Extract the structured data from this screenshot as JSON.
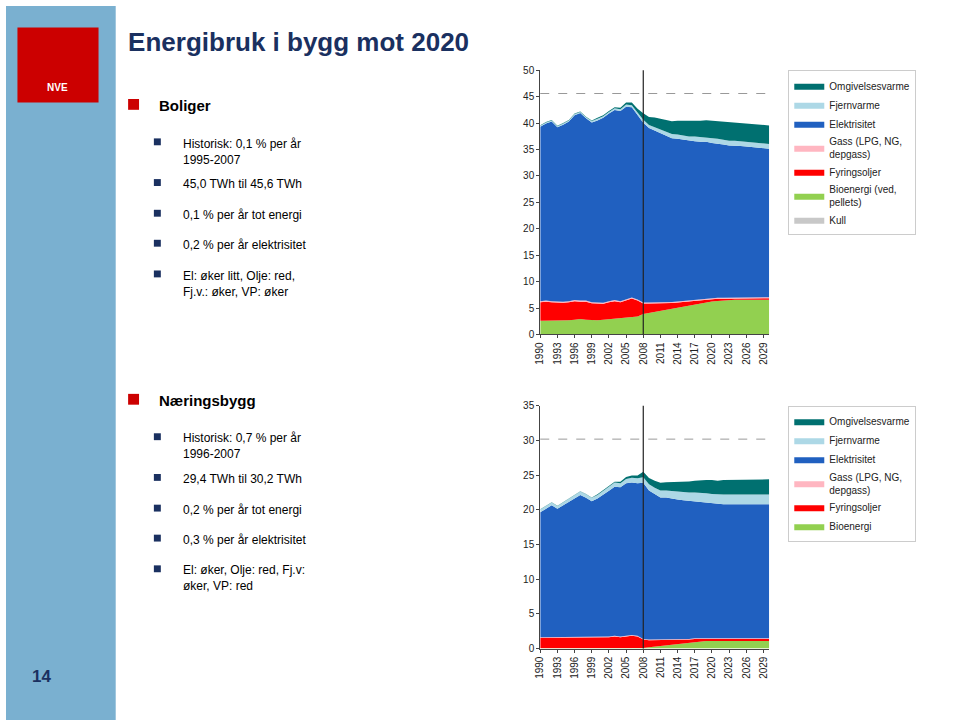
{
  "chart_data": [
    {
      "type": "area",
      "stacked": true,
      "grid": false,
      "legend": "right",
      "title": "Energibruk i bygg mot 2020",
      "annotations": [
        "Boliger",
        "Historisk: 0,1 % per år\n1995-2007",
        "45,0 TWh til 45,6 TWh",
        "0,1 % per år tot energi",
        "0,2 % per år elektrisitet",
        "El: øker litt, Olje: red,\nFj.v.: øker, VP: øker",
        "Næringsbygg",
        "Historisk: 0,7 % per år\n1996-2007",
        "29,4 TWh til 30,2 TWh",
        "0,2 % per år tot energi",
        "0,3 % per år elektrisitet",
        "El: øker, Olje: red, Fj.v:\nøker, VP: red",
        "NVE",
        "14"
      ],
      "x": [
        1990,
        1991,
        1992,
        1993,
        1994,
        1995,
        1996,
        1997,
        1998,
        1999,
        2000,
        2001,
        2002,
        2003,
        2004,
        2005,
        2006,
        2007,
        2008,
        2009,
        2010,
        2011,
        2012,
        2013,
        2014,
        2015,
        2016,
        2017,
        2018,
        2019,
        2020,
        2021,
        2022,
        2023,
        2024,
        2025,
        2026,
        2027,
        2028,
        2029,
        2030
      ],
      "xlim": [
        1990,
        2030
      ],
      "xticks": [
        1990,
        1993,
        1996,
        1999,
        2002,
        2005,
        2008,
        2011,
        2014,
        2017,
        2020,
        2023,
        2026,
        2029
      ],
      "ylim": [
        0,
        50
      ],
      "yticks": [
        0,
        5,
        10,
        15,
        20,
        25,
        30,
        35,
        40,
        45,
        50
      ],
      "hline": 45.6,
      "vline": 2008,
      "series": [
        {
          "name": "Kull",
          "color": "#c8c8c8",
          "values": [
            0.1,
            0.1,
            0.1,
            0.1,
            0.1,
            0.1,
            0.1,
            0.1,
            0.1,
            0.1,
            0.1,
            0.1,
            0.1,
            0.1,
            0.1,
            0.1,
            0.1,
            0.1,
            0.05,
            0.05,
            0.05,
            0.05,
            0.05,
            0.05,
            0.05,
            0.05,
            0.05,
            0.05,
            0.05,
            0.05,
            0.05,
            0.05,
            0.05,
            0.05,
            0.05,
            0.05,
            0.05,
            0.05,
            0.05,
            0.05,
            0.05
          ]
        },
        {
          "name": "Bioenergi (ved,\npellets)",
          "color": "#92d050",
          "values": [
            2.5,
            2.5,
            2.5,
            2.5,
            2.6,
            2.6,
            2.7,
            2.8,
            2.7,
            2.6,
            2.6,
            2.7,
            2.8,
            2.8,
            2.9,
            3.0,
            3.2,
            3.3,
            3.8,
            4.0,
            4.2,
            4.5,
            4.7,
            4.9,
            5.1,
            5.3,
            5.5,
            5.7,
            5.9,
            6.1,
            6.2,
            6.3,
            6.4,
            6.4,
            6.5,
            6.5,
            6.5,
            6.5,
            6.5,
            6.5,
            6.5
          ]
        },
        {
          "name": "Fyringsoljer",
          "color": "#ff0000",
          "values": [
            3.5,
            3.6,
            3.5,
            3.4,
            3.3,
            3.4,
            3.5,
            3.3,
            3.4,
            3.2,
            3.1,
            3.0,
            3.2,
            3.4,
            3.1,
            3.3,
            3.5,
            3.0,
            2.0,
            1.8,
            1.6,
            1.4,
            1.2,
            1.0,
            0.9,
            0.8,
            0.7,
            0.6,
            0.5,
            0.5,
            0.4,
            0.4,
            0.3,
            0.3,
            0.3,
            0.3,
            0.3,
            0.3,
            0.3,
            0.3,
            0.3
          ]
        },
        {
          "name": "Gass (LPG, NG,\ndepgass)",
          "color": "#ffb6c1",
          "values": [
            0.2,
            0.2,
            0.2,
            0.2,
            0.2,
            0.2,
            0.2,
            0.2,
            0.2,
            0.2,
            0.2,
            0.2,
            0.2,
            0.2,
            0.2,
            0.2,
            0.2,
            0.2,
            0.2,
            0.2,
            0.2,
            0.2,
            0.2,
            0.2,
            0.2,
            0.2,
            0.2,
            0.2,
            0.2,
            0.2,
            0.2,
            0.2,
            0.2,
            0.2,
            0.2,
            0.2,
            0.2,
            0.2,
            0.2,
            0.2,
            0.2
          ]
        },
        {
          "name": "Elektrisitet",
          "color": "#2060c0",
          "values": [
            33,
            33.5,
            34,
            33,
            33.5,
            34,
            35,
            35.5,
            34.5,
            34,
            34.5,
            35,
            35.5,
            36,
            36,
            36.5,
            36,
            35,
            34,
            33,
            32.5,
            32,
            31.5,
            31,
            30.8,
            30.5,
            30.2,
            30,
            29.8,
            29.6,
            29.4,
            29.2,
            29.0,
            28.8,
            28.7,
            28.6,
            28.5,
            28.4,
            28.3,
            28.2,
            28.1
          ]
        },
        {
          "name": "Fjernvarme",
          "color": "#add8e6",
          "values": [
            0.2,
            0.2,
            0.2,
            0.2,
            0.2,
            0.2,
            0.2,
            0.2,
            0.2,
            0.3,
            0.3,
            0.3,
            0.3,
            0.3,
            0.3,
            0.4,
            0.4,
            0.5,
            0.6,
            0.6,
            0.7,
            0.7,
            0.7,
            0.8,
            0.8,
            0.8,
            0.8,
            0.9,
            0.9,
            0.9,
            0.9,
            0.9,
            0.9,
            0.9,
            0.9,
            0.9,
            0.9,
            0.9,
            0.9,
            0.9,
            0.9
          ]
        },
        {
          "name": "Omgivelsesvarme",
          "color": "#007070",
          "values": [
            0.1,
            0.1,
            0.1,
            0.1,
            0.1,
            0.1,
            0.1,
            0.1,
            0.1,
            0.1,
            0.2,
            0.2,
            0.2,
            0.2,
            0.3,
            0.4,
            0.5,
            0.6,
            1.2,
            1.5,
            1.8,
            2.0,
            2.2,
            2.4,
            2.6,
            2.8,
            2.9,
            3.0,
            3.1,
            3.2,
            3.3,
            3.4,
            3.4,
            3.5,
            3.5,
            3.5,
            3.5,
            3.5,
            3.5,
            3.5,
            3.5
          ]
        }
      ]
    },
    {
      "type": "area",
      "stacked": true,
      "grid": false,
      "legend": "right",
      "x": [
        1990,
        1991,
        1992,
        1993,
        1994,
        1995,
        1996,
        1997,
        1998,
        1999,
        2000,
        2001,
        2002,
        2003,
        2004,
        2005,
        2006,
        2007,
        2008,
        2009,
        2010,
        2011,
        2012,
        2013,
        2014,
        2015,
        2016,
        2017,
        2018,
        2019,
        2020,
        2021,
        2022,
        2023,
        2024,
        2025,
        2026,
        2027,
        2028,
        2029,
        2030
      ],
      "xlim": [
        1990,
        2030
      ],
      "xticks": [
        1990,
        1993,
        1996,
        1999,
        2002,
        2005,
        2008,
        2011,
        2014,
        2017,
        2020,
        2023,
        2026,
        2029
      ],
      "ylim": [
        0,
        35
      ],
      "yticks": [
        0,
        5,
        10,
        15,
        20,
        25,
        30,
        35
      ],
      "hline": 30.2,
      "vline": 2008,
      "series": [
        {
          "name": "Bioenergi",
          "color": "#92d050",
          "values": [
            0.05,
            0.05,
            0.05,
            0.05,
            0.05,
            0.05,
            0.05,
            0.05,
            0.05,
            0.05,
            0.05,
            0.05,
            0.05,
            0.05,
            0.05,
            0.05,
            0.05,
            0.05,
            0.1,
            0.2,
            0.3,
            0.4,
            0.5,
            0.6,
            0.7,
            0.8,
            0.9,
            1.0,
            1.0,
            1.1,
            1.1,
            1.1,
            1.1,
            1.1,
            1.1,
            1.1,
            1.1,
            1.1,
            1.1,
            1.1,
            1.1
          ]
        },
        {
          "name": "Fyringsoljer",
          "color": "#ff0000",
          "values": [
            1.5,
            1.5,
            1.5,
            1.5,
            1.5,
            1.5,
            1.5,
            1.5,
            1.6,
            1.6,
            1.5,
            1.5,
            1.6,
            1.7,
            1.6,
            1.7,
            1.8,
            1.7,
            1.2,
            1.0,
            0.9,
            0.8,
            0.7,
            0.6,
            0.5,
            0.5,
            0.4,
            0.4,
            0.4,
            0.3,
            0.3,
            0.3,
            0.3,
            0.3,
            0.3,
            0.3,
            0.3,
            0.3,
            0.3,
            0.3,
            0.3
          ]
        },
        {
          "name": "Gass (LPG, NG,\ndepgass)",
          "color": "#ffb6c1",
          "values": [
            0.1,
            0.1,
            0.1,
            0.1,
            0.1,
            0.1,
            0.1,
            0.1,
            0.1,
            0.1,
            0.1,
            0.1,
            0.1,
            0.1,
            0.1,
            0.1,
            0.1,
            0.1,
            0.1,
            0.1,
            0.1,
            0.1,
            0.1,
            0.1,
            0.1,
            0.1,
            0.1,
            0.1,
            0.1,
            0.1,
            0.1,
            0.1,
            0.1,
            0.1,
            0.1,
            0.1,
            0.1,
            0.1,
            0.1,
            0.1,
            0.1
          ]
        },
        {
          "name": "Elektrisitet",
          "color": "#2060c0",
          "values": [
            18,
            18.5,
            19,
            18.5,
            19,
            19.5,
            20,
            20.5,
            20,
            19.5,
            20,
            20.5,
            21,
            21.5,
            21.5,
            22,
            22,
            22,
            22.5,
            21.5,
            21,
            20.5,
            20.5,
            20.3,
            20.2,
            20.0,
            19.9,
            19.8,
            19.7,
            19.6,
            19.5,
            19.4,
            19.3,
            19.3,
            19.3,
            19.3,
            19.3,
            19.3,
            19.3,
            19.3,
            19.3
          ]
        },
        {
          "name": "Fjernvarme",
          "color": "#add8e6",
          "values": [
            0.4,
            0.4,
            0.4,
            0.4,
            0.4,
            0.5,
            0.5,
            0.5,
            0.5,
            0.5,
            0.5,
            0.6,
            0.6,
            0.6,
            0.6,
            0.6,
            0.7,
            0.7,
            0.8,
            0.9,
            0.9,
            1.0,
            1.0,
            1.1,
            1.1,
            1.2,
            1.2,
            1.2,
            1.3,
            1.3,
            1.3,
            1.3,
            1.4,
            1.4,
            1.4,
            1.4,
            1.4,
            1.4,
            1.4,
            1.4,
            1.4
          ]
        },
        {
          "name": "Omgivelsesvarme",
          "color": "#007070",
          "values": [
            0.05,
            0.05,
            0.05,
            0.05,
            0.05,
            0.05,
            0.05,
            0.05,
            0.05,
            0.05,
            0.1,
            0.1,
            0.1,
            0.1,
            0.2,
            0.3,
            0.3,
            0.4,
            0.8,
            0.9,
            1.0,
            1.1,
            1.2,
            1.3,
            1.4,
            1.5,
            1.6,
            1.7,
            1.8,
            1.9,
            2.0,
            2.0,
            2.1,
            2.1,
            2.2,
            2.2,
            2.2,
            2.2,
            2.2,
            2.2,
            2.2
          ]
        }
      ]
    }
  ]
}
